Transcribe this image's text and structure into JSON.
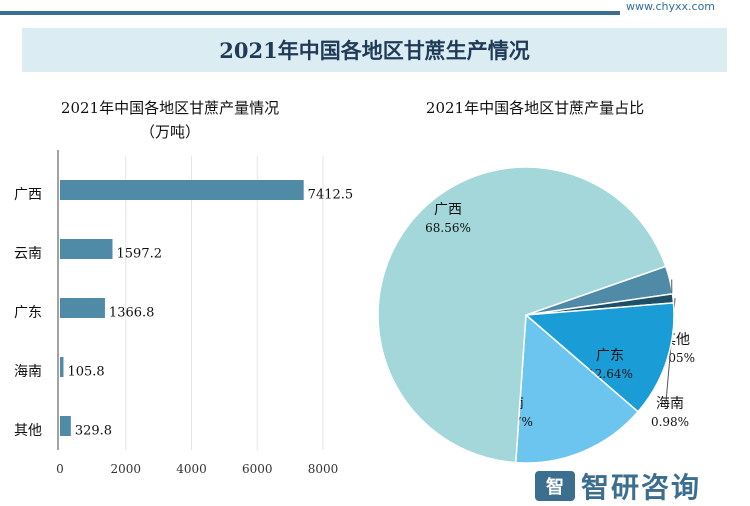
{
  "header": {
    "url": "www.chyxx.com",
    "title": "2021年中国各地区甘蔗生产情况"
  },
  "chart_data": [
    {
      "type": "bar",
      "orientation": "horizontal",
      "title": "2021年中国各地区甘蔗产量情况",
      "subtitle": "（万吨）",
      "categories": [
        "广西",
        "云南",
        "广东",
        "海南",
        "其他"
      ],
      "values": [
        7412.5,
        1597.2,
        1366.8,
        105.8,
        329.8
      ],
      "value_labels": [
        "7412.5",
        "1597.2",
        "1366.8",
        "105.8",
        "329.8"
      ],
      "xticks": [
        "0",
        "2000",
        "4000",
        "6000",
        "8000"
      ],
      "xlim": [
        0,
        8000
      ],
      "bar_color": "#4f8aa7",
      "grid": true
    },
    {
      "type": "pie",
      "title": "2021年中国各地区甘蔗产量占比",
      "slices": [
        {
          "name": "广西",
          "value": 68.56,
          "label": "68.56%",
          "color": "#a3d7d9"
        },
        {
          "name": "云南",
          "value": 14.77,
          "label": "14.77%",
          "color": "#6cc5ee"
        },
        {
          "name": "广东",
          "value": 12.64,
          "label": "12.64%",
          "color": "#1a9cd6"
        },
        {
          "name": "海南",
          "value": 0.98,
          "label": "0.98%",
          "color": "#1d4f66"
        },
        {
          "name": "其他",
          "value": 3.05,
          "label": "3.05%",
          "color": "#4f8aa7"
        }
      ]
    }
  ],
  "watermark": {
    "brand": "智研咨询"
  }
}
